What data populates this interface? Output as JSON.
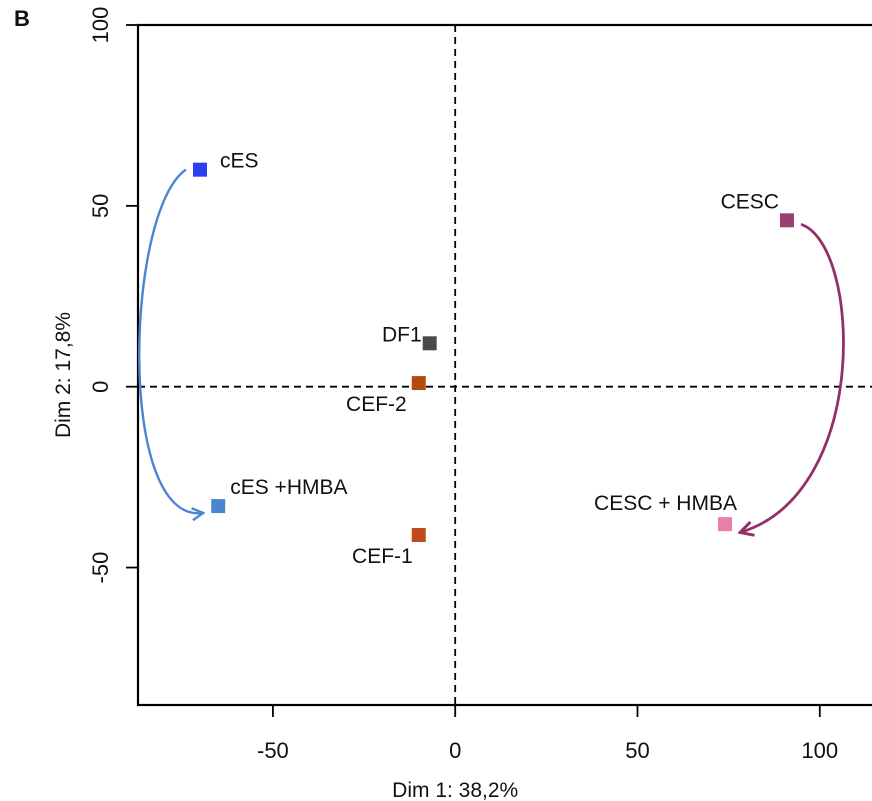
{
  "panel_label": "B",
  "chart_data": {
    "type": "scatter",
    "xlabel": "Dim 1: 38,2%",
    "ylabel": "Dim 2: 17,8%",
    "xlim": [
      -87,
      122
    ],
    "ylim": [
      -88,
      100
    ],
    "xticks": [
      -50,
      0,
      50,
      100
    ],
    "yticks": [
      -50,
      0,
      50,
      100
    ],
    "x_tick_labels": [
      "-50",
      "0",
      "50",
      "100"
    ],
    "y_tick_labels": [
      "-50",
      "0",
      "50",
      "100"
    ],
    "reference_lines": {
      "x": 0,
      "y": 0,
      "style": "dashed"
    },
    "grid": false,
    "points": [
      {
        "label": "cES",
        "x": -70,
        "y": 60,
        "color": "#2a3ff0"
      },
      {
        "label": "cES +HMBA",
        "x": -65,
        "y": -33,
        "color": "#4a86d0"
      },
      {
        "label": "DF1",
        "x": -7,
        "y": 12,
        "color": "#4a4a4a"
      },
      {
        "label": "CEF-2",
        "x": -10,
        "y": 1,
        "color": "#b34a10"
      },
      {
        "label": "CEF-1",
        "x": -10,
        "y": -41,
        "color": "#c04a1a"
      },
      {
        "label": "CESC",
        "x": 91,
        "y": 46,
        "color": "#9a4070"
      },
      {
        "label": "CESC + HMBA",
        "x": 74,
        "y": -38,
        "color": "#e77fa8"
      }
    ],
    "arrows": [
      {
        "from": "cES",
        "to": "cES +HMBA",
        "color": "#4a86d0"
      },
      {
        "from": "CESC",
        "to": "CESC + HMBA",
        "color": "#93306a"
      }
    ]
  }
}
